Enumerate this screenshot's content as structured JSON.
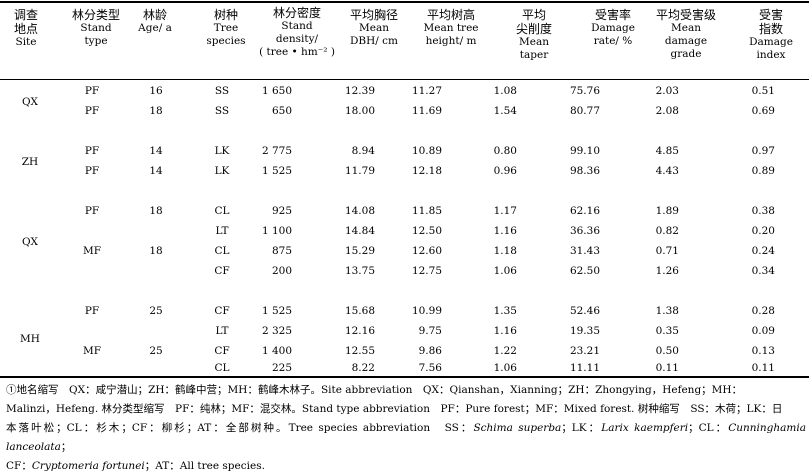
{
  "headers": [
    {
      "zh": "调查\n地点",
      "en": "Site"
    },
    {
      "zh": "林分类型",
      "en": "Stand\ntype"
    },
    {
      "zh": "林龄",
      "en": "Age/ a"
    },
    {
      "zh": "树种",
      "en": "Tree\nspecies"
    },
    {
      "zh": "林分密度",
      "en": "Stand\ndensity/\n( tree • hm⁻² )"
    },
    {
      "zh": "平均胸径",
      "en": "Mean\nDBH/ cm"
    },
    {
      "zh": "平均树高",
      "en": "Mean tree\nheight/ m"
    },
    {
      "zh": "平均\n尖削度",
      "en": "Mean\ntaper"
    },
    {
      "zh": "受害率",
      "en": "Damage\nrate/ %"
    },
    {
      "zh": "平均受害级",
      "en": "Mean\ndamage\ngrade"
    },
    {
      "zh": "受害\n指数",
      "en": "Damage\nindex"
    }
  ],
  "sites": [
    {
      "label": "QX"
    },
    {
      "label": "ZH"
    },
    {
      "label": "QX"
    },
    {
      "label": "MH"
    }
  ],
  "rows": [
    {
      "type": "PF",
      "age": "16",
      "species": "SS",
      "density": "1 650",
      "dbh": "12.39",
      "height": "11.27",
      "taper": "1.08",
      "rate": "75.76",
      "grade": "2.03",
      "index": "0.51"
    },
    {
      "type": "PF",
      "age": "18",
      "species": "SS",
      "density": "650",
      "dbh": "18.00",
      "height": "11.69",
      "taper": "1.54",
      "rate": "80.77",
      "grade": "2.08",
      "index": "0.69"
    },
    {
      "type": "PF",
      "age": "14",
      "species": "LK",
      "density": "2 775",
      "dbh": "8.94",
      "height": "10.89",
      "taper": "0.80",
      "rate": "99.10",
      "grade": "4.85",
      "index": "0.97"
    },
    {
      "type": "PF",
      "age": "14",
      "species": "LK",
      "density": "1 525",
      "dbh": "11.79",
      "height": "12.18",
      "taper": "0.96",
      "rate": "98.36",
      "grade": "4.43",
      "index": "0.89"
    },
    {
      "type": "PF",
      "age": "18",
      "species": "CL",
      "density": "925",
      "dbh": "14.08",
      "height": "11.85",
      "taper": "1.17",
      "rate": "62.16",
      "grade": "1.89",
      "index": "0.38"
    },
    {
      "type": "",
      "age": "",
      "species": "LT",
      "density": "1 100",
      "dbh": "14.84",
      "height": "12.50",
      "taper": "1.16",
      "rate": "36.36",
      "grade": "0.82",
      "index": "0.20"
    },
    {
      "type": "MF",
      "age": "18",
      "species": "CL",
      "density": "875",
      "dbh": "15.29",
      "height": "12.60",
      "taper": "1.18",
      "rate": "31.43",
      "grade": "0.71",
      "index": "0.24"
    },
    {
      "type": "",
      "age": "",
      "species": "CF",
      "density": "200",
      "dbh": "13.75",
      "height": "12.75",
      "taper": "1.06",
      "rate": "62.50",
      "grade": "1.26",
      "index": "0.34"
    },
    {
      "type": "PF",
      "age": "25",
      "species": "CF",
      "density": "1 525",
      "dbh": "15.68",
      "height": "10.99",
      "taper": "1.35",
      "rate": "52.46",
      "grade": "1.38",
      "index": "0.28"
    },
    {
      "type": "",
      "age": "",
      "species": "LT",
      "density": "2 325",
      "dbh": "12.16",
      "height": "9.75",
      "taper": "1.16",
      "rate": "19.35",
      "grade": "0.35",
      "index": "0.09"
    },
    {
      "type": "MF",
      "age": "25",
      "species": "CF",
      "density": "1 400",
      "dbh": "12.55",
      "height": "9.86",
      "taper": "1.22",
      "rate": "23.21",
      "grade": "0.50",
      "index": "0.13"
    },
    {
      "type": "",
      "age": "",
      "species": "CL",
      "density": "225",
      "dbh": "8.22",
      "height": "7.56",
      "taper": "1.06",
      "rate": "11.11",
      "grade": "0.11",
      "index": "0.11"
    }
  ],
  "footnote": {
    "p1": "①地名缩写　QX：咸宁潜山；ZH：鹤峰中营；MH：鹤峰木林子。Site abbreviation　QX：Qianshan，Xianning；ZH：Zhongying，Hefeng；MH：",
    "p2": "Malinzi，Hefeng. 林分类型缩写　PF：纯林；MF：混交林。Stand type abbreviation　PF：Pure forest；MF：Mixed forest. 树种缩写　SS：木荷；LK：日",
    "p3a": "本落叶松；CL：杉木；CF：柳杉；AT：全部树种。Tree species abbreviation　SS：",
    "p3b": "Schima superba",
    "p3c": "；LK：",
    "p3d": "Larix kaempferi",
    "p3e": "；CL：",
    "p3f": "Cunninghamia lanceolata",
    "p3g": "；",
    "p4a": "CF：",
    "p4b": "Cryptomeria fortunei",
    "p4c": "；AT：All tree species."
  }
}
